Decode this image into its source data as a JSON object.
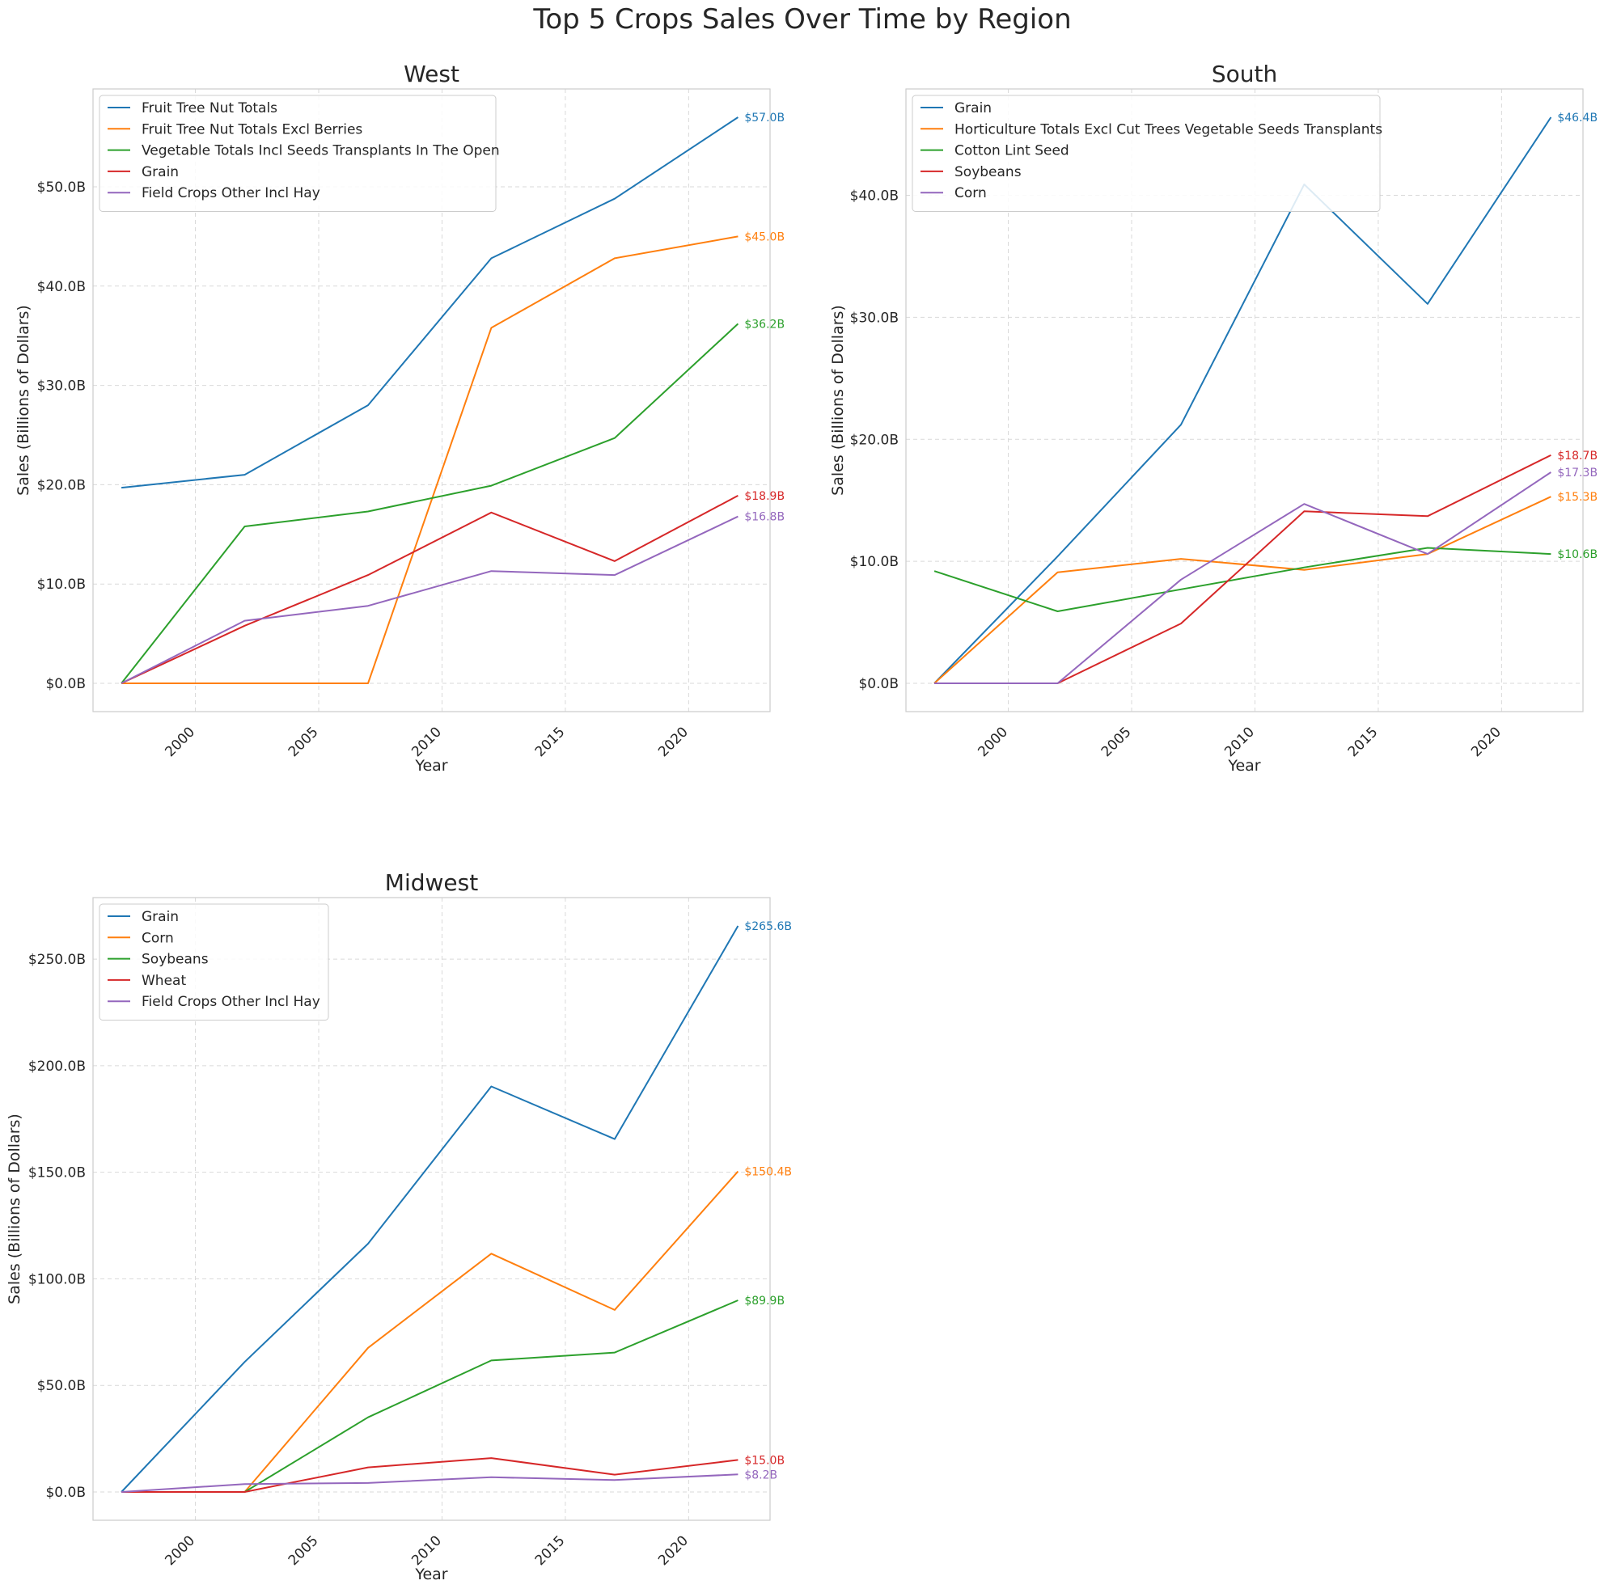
{
  "figure": {
    "title": "Top 5 Crops Sales Over Time by Region"
  },
  "palette": [
    "#1f77b4",
    "#ff7f0e",
    "#2ca02c",
    "#d62728",
    "#9467bd"
  ],
  "chart_data": [
    {
      "type": "line",
      "title": "West",
      "xlabel": "Year",
      "ylabel": "Sales (Billions of Dollars)",
      "x": [
        1997,
        2002,
        2007,
        2012,
        2017,
        2022
      ],
      "xticks": [
        2000,
        2005,
        2010,
        2015,
        2020
      ],
      "xlim": [
        1995.85,
        2023.3
      ],
      "yticks": [
        0,
        10,
        20,
        30,
        40,
        50
      ],
      "tick_labels": [
        "$0.0B",
        "$10.0B",
        "$20.0B",
        "$30.0B",
        "$40.0B",
        "$50.0B"
      ],
      "ylim": [
        -2.85,
        59.85
      ],
      "grid": true,
      "legend": "upper-left",
      "series": [
        {
          "name": "Fruit Tree Nut Totals",
          "color": "#1f77b4",
          "values": [
            19.7,
            21.0,
            28.0,
            42.8,
            48.8,
            57.0
          ],
          "end_label": "$57.0B"
        },
        {
          "name": "Fruit Tree Nut Totals Excl Berries",
          "color": "#ff7f0e",
          "values": [
            0,
            0,
            0,
            35.8,
            42.8,
            45.0
          ],
          "end_label": "$45.0B"
        },
        {
          "name": "Vegetable Totals Incl Seeds Transplants In The Open",
          "color": "#2ca02c",
          "values": [
            0,
            15.8,
            17.3,
            19.9,
            24.7,
            36.2
          ],
          "end_label": "$36.2B"
        },
        {
          "name": "Grain",
          "color": "#d62728",
          "values": [
            0,
            5.8,
            10.9,
            17.2,
            12.3,
            18.9
          ],
          "end_label": "$18.9B"
        },
        {
          "name": "Field Crops Other Incl Hay",
          "color": "#9467bd",
          "values": [
            0,
            6.3,
            7.8,
            11.3,
            10.9,
            16.8
          ],
          "end_label": "$16.8B"
        }
      ]
    },
    {
      "type": "line",
      "title": "South",
      "xlabel": "Year",
      "ylabel": "Sales (Billions of Dollars)",
      "x": [
        1997,
        2002,
        2007,
        2012,
        2017,
        2022
      ],
      "xticks": [
        2000,
        2005,
        2010,
        2015,
        2020
      ],
      "xlim": [
        1995.85,
        2023.3
      ],
      "yticks": [
        0,
        10,
        20,
        30,
        40
      ],
      "tick_labels": [
        "$0.0B",
        "$10.0B",
        "$20.0B",
        "$30.0B",
        "$40.0B"
      ],
      "ylim": [
        -2.32,
        48.72
      ],
      "grid": true,
      "legend": "upper-left",
      "series": [
        {
          "name": "Grain",
          "color": "#1f77b4",
          "values": [
            0,
            10.4,
            21.2,
            40.9,
            31.1,
            46.4
          ],
          "end_label": "$46.4B"
        },
        {
          "name": "Horticulture Totals Excl Cut Trees Vegetable Seeds Transplants",
          "color": "#ff7f0e",
          "values": [
            0,
            9.1,
            10.2,
            9.3,
            10.6,
            15.3
          ],
          "end_label": "$15.3B"
        },
        {
          "name": "Cotton Lint Seed",
          "color": "#2ca02c",
          "values": [
            9.2,
            5.9,
            7.7,
            9.5,
            11.1,
            10.6
          ],
          "end_label": "$10.6B"
        },
        {
          "name": "Soybeans",
          "color": "#d62728",
          "values": [
            0,
            0,
            4.9,
            14.1,
            13.7,
            18.7
          ],
          "end_label": "$18.7B"
        },
        {
          "name": "Corn",
          "color": "#9467bd",
          "values": [
            0,
            0,
            8.5,
            14.7,
            10.6,
            17.3
          ],
          "end_label": "$17.3B"
        }
      ]
    },
    {
      "type": "line",
      "title": "Midwest",
      "xlabel": "Year",
      "ylabel": "Sales (Billions of Dollars)",
      "x": [
        1997,
        2002,
        2007,
        2012,
        2017,
        2022
      ],
      "xticks": [
        2000,
        2005,
        2010,
        2015,
        2020
      ],
      "xlim": [
        1995.85,
        2023.3
      ],
      "yticks": [
        0,
        50,
        100,
        150,
        200,
        250
      ],
      "tick_labels": [
        "$0.0B",
        "$50.0B",
        "$100.0B",
        "$150.0B",
        "$200.0B",
        "$250.0B"
      ],
      "ylim": [
        -13.3,
        278.9
      ],
      "grid": true,
      "legend": "upper-left",
      "series": [
        {
          "name": "Grain",
          "color": "#1f77b4",
          "values": [
            0,
            61.0,
            116.5,
            190.3,
            165.6,
            265.6
          ],
          "end_label": "$265.6B"
        },
        {
          "name": "Corn",
          "color": "#ff7f0e",
          "values": [
            0,
            0,
            67.6,
            111.8,
            85.4,
            150.4
          ],
          "end_label": "$150.4B"
        },
        {
          "name": "Soybeans",
          "color": "#2ca02c",
          "values": [
            0,
            0,
            35.0,
            61.7,
            65.4,
            89.9
          ],
          "end_label": "$89.9B"
        },
        {
          "name": "Wheat",
          "color": "#d62728",
          "values": [
            0,
            0,
            11.5,
            15.9,
            8.1,
            15.0
          ],
          "end_label": "$15.0B"
        },
        {
          "name": "Field Crops Other Incl Hay",
          "color": "#9467bd",
          "values": [
            0,
            3.7,
            4.2,
            6.9,
            5.6,
            8.2
          ],
          "end_label": "$8.2B"
        }
      ]
    }
  ]
}
